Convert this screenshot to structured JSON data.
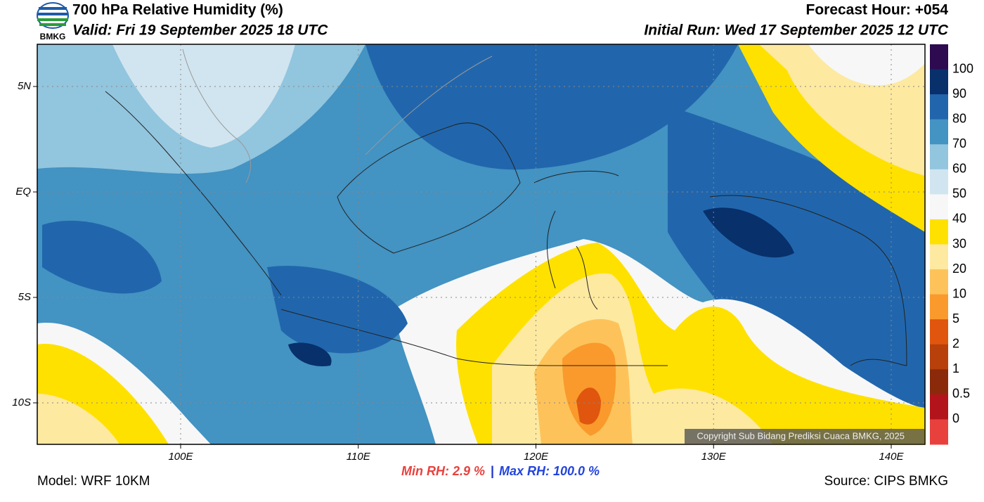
{
  "header": {
    "logo_text": "BMKG",
    "title": "700 hPa Relative Humidity (%)",
    "valid": "Valid: Fri 19 September 2025 18 UTC",
    "forecast_hour": "Forecast Hour: +054",
    "initial_run": "Initial Run: Wed 17 September 2025 12 UTC"
  },
  "map": {
    "lat_labels": [
      "5N",
      "EQ",
      "5S",
      "10S"
    ],
    "lon_labels": [
      "100E",
      "110E",
      "120E",
      "130E",
      "140E"
    ],
    "copyright": "Copyright Sub Bidang Prediksi Cuaca BMKG, 2025"
  },
  "colorbar": {
    "labels": [
      "100",
      "90",
      "80",
      "70",
      "60",
      "50",
      "40",
      "30",
      "20",
      "10",
      "5",
      "2",
      "1",
      "0.5",
      "0"
    ],
    "colors": [
      "#2e0a50",
      "#08306b",
      "#2166ac",
      "#4393c3",
      "#92c5de",
      "#d1e5f0",
      "#f7f7f7",
      "#ffe100",
      "#fde9a0",
      "#fdc35a",
      "#fa9a2c",
      "#e0560e",
      "#b8400b",
      "#8a2a0a",
      "#b3141b",
      "#e8413d"
    ]
  },
  "footer": {
    "min_rh": "Min RH:   2.9 %",
    "max_rh": "Max RH: 100.0 %",
    "model": "Model: WRF 10KM",
    "source": "Source: CIPS BMKG"
  }
}
